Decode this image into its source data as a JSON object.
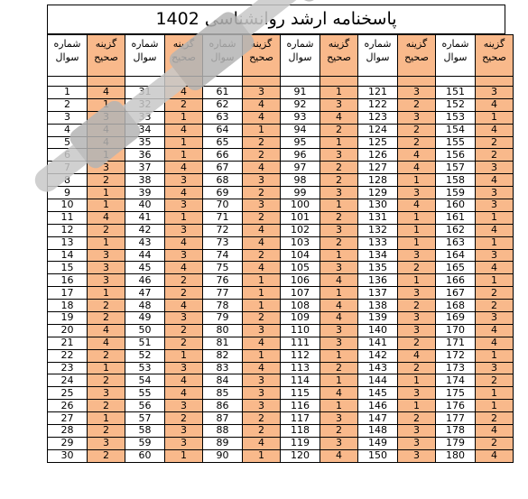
{
  "title": "پاسخنامه ارشد روانشناسی 1402",
  "headers": {
    "question": "شماره\nسوال",
    "answer": "گزینه\nصحیح"
  },
  "answer_key": [
    {
      "q": [
        1,
        31,
        61,
        91,
        121,
        151
      ],
      "a": [
        4,
        4,
        3,
        1,
        3,
        3
      ]
    },
    {
      "q": [
        2,
        32,
        62,
        92,
        122,
        152
      ],
      "a": [
        1,
        2,
        4,
        3,
        2,
        4
      ]
    },
    {
      "q": [
        3,
        33,
        63,
        93,
        123,
        153
      ],
      "a": [
        3,
        1,
        4,
        4,
        3,
        1
      ]
    },
    {
      "q": [
        4,
        34,
        64,
        94,
        124,
        154
      ],
      "a": [
        4,
        4,
        1,
        2,
        2,
        4
      ]
    },
    {
      "q": [
        5,
        35,
        65,
        95,
        125,
        155
      ],
      "a": [
        4,
        1,
        2,
        1,
        2,
        2
      ]
    },
    {
      "q": [
        6,
        36,
        66,
        96,
        126,
        156
      ],
      "a": [
        1,
        1,
        2,
        3,
        4,
        2
      ]
    },
    {
      "q": [
        7,
        37,
        67,
        97,
        127,
        157
      ],
      "a": [
        3,
        4,
        4,
        2,
        4,
        3
      ]
    },
    {
      "q": [
        8,
        38,
        68,
        98,
        128,
        158
      ],
      "a": [
        2,
        3,
        3,
        2,
        1,
        4
      ]
    },
    {
      "q": [
        9,
        39,
        69,
        99,
        129,
        159
      ],
      "a": [
        1,
        4,
        2,
        3,
        3,
        3
      ]
    },
    {
      "q": [
        10,
        40,
        70,
        100,
        130,
        160
      ],
      "a": [
        1,
        3,
        3,
        1,
        4,
        3
      ]
    },
    {
      "q": [
        11,
        41,
        71,
        101,
        131,
        161
      ],
      "a": [
        4,
        1,
        2,
        2,
        1,
        1
      ]
    },
    {
      "q": [
        12,
        42,
        72,
        102,
        132,
        162
      ],
      "a": [
        2,
        3,
        4,
        3,
        1,
        4
      ]
    },
    {
      "q": [
        13,
        43,
        73,
        103,
        133,
        163
      ],
      "a": [
        1,
        4,
        4,
        2,
        1,
        1
      ]
    },
    {
      "q": [
        14,
        44,
        74,
        104,
        134,
        164
      ],
      "a": [
        3,
        3,
        2,
        1,
        3,
        3
      ]
    },
    {
      "q": [
        15,
        45,
        75,
        105,
        135,
        165
      ],
      "a": [
        3,
        4,
        4,
        3,
        2,
        4
      ]
    },
    {
      "q": [
        16,
        46,
        76,
        106,
        136,
        166
      ],
      "a": [
        3,
        2,
        1,
        4,
        1,
        1
      ]
    },
    {
      "q": [
        17,
        47,
        77,
        107,
        137,
        167
      ],
      "a": [
        1,
        2,
        1,
        1,
        3,
        2
      ]
    },
    {
      "q": [
        18,
        48,
        78,
        108,
        138,
        168
      ],
      "a": [
        2,
        4,
        1,
        4,
        2,
        2
      ]
    },
    {
      "q": [
        19,
        49,
        79,
        109,
        139,
        169
      ],
      "a": [
        2,
        3,
        2,
        4,
        3,
        3
      ]
    },
    {
      "q": [
        20,
        50,
        80,
        110,
        140,
        170
      ],
      "a": [
        4,
        2,
        3,
        3,
        3,
        4
      ]
    },
    {
      "q": [
        21,
        51,
        81,
        111,
        141,
        171
      ],
      "a": [
        4,
        2,
        4,
        3,
        2,
        4
      ]
    },
    {
      "q": [
        22,
        52,
        82,
        112,
        142,
        172
      ],
      "a": [
        2,
        1,
        1,
        1,
        4,
        1
      ]
    },
    {
      "q": [
        23,
        53,
        83,
        113,
        143,
        173
      ],
      "a": [
        1,
        3,
        4,
        2,
        2,
        3
      ]
    },
    {
      "q": [
        24,
        54,
        84,
        114,
        144,
        174
      ],
      "a": [
        2,
        4,
        3,
        1,
        1,
        2
      ]
    },
    {
      "q": [
        25,
        55,
        85,
        115,
        145,
        175
      ],
      "a": [
        3,
        4,
        3,
        4,
        3,
        1
      ]
    },
    {
      "q": [
        26,
        56,
        86,
        116,
        146,
        176
      ],
      "a": [
        2,
        3,
        3,
        1,
        1,
        1
      ]
    },
    {
      "q": [
        27,
        57,
        87,
        117,
        147,
        177
      ],
      "a": [
        1,
        2,
        2,
        3,
        2,
        2
      ]
    },
    {
      "q": [
        28,
        58,
        88,
        118,
        148,
        178
      ],
      "a": [
        2,
        3,
        2,
        2,
        3,
        4
      ]
    },
    {
      "q": [
        29,
        59,
        89,
        119,
        149,
        179
      ],
      "a": [
        3,
        3,
        4,
        3,
        3,
        2
      ]
    },
    {
      "q": [
        30,
        60,
        90,
        120,
        150,
        180
      ],
      "a": [
        2,
        1,
        1,
        4,
        3,
        4
      ]
    }
  ],
  "colors": {
    "answer_fill": "#f9b98b",
    "watermark": "#c8c8c8"
  }
}
